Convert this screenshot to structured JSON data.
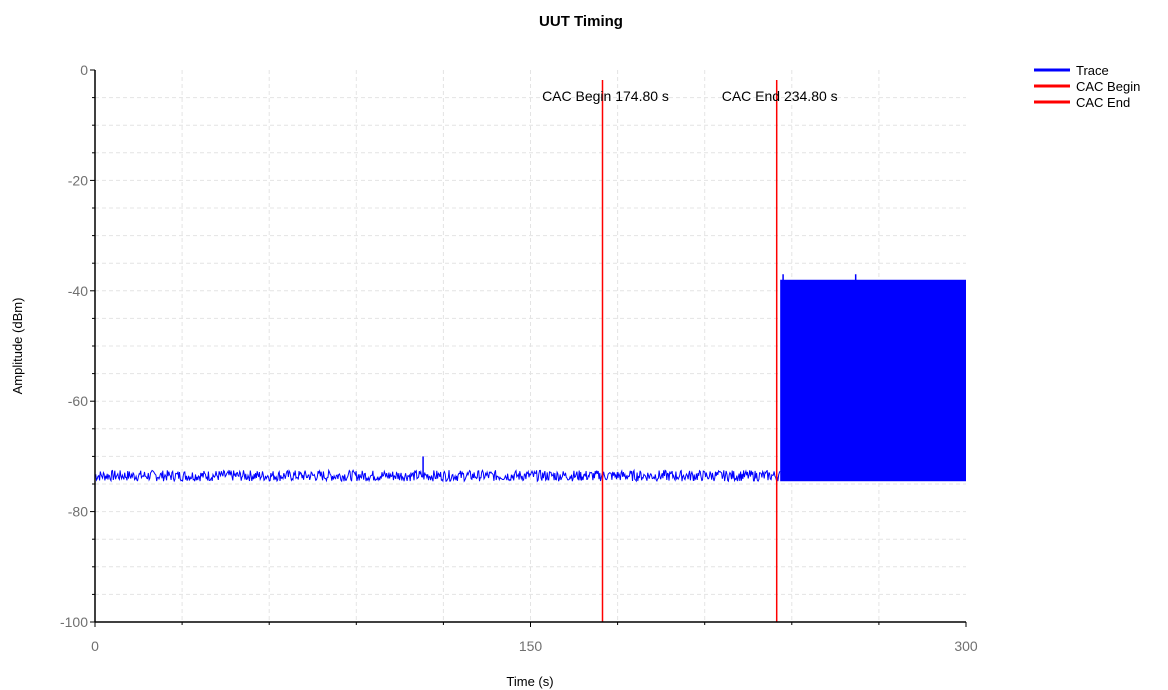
{
  "chart_data": {
    "type": "line",
    "title": "UUT Timing",
    "xlabel": "Time (s)",
    "ylabel": "Amplitude (dBm)",
    "xlim": [
      0,
      300
    ],
    "ylim": [
      -100,
      0
    ],
    "x_ticks": [
      0,
      150,
      300
    ],
    "y_ticks": [
      0,
      -20,
      -40,
      -60,
      -80,
      -100
    ],
    "grid": true,
    "legend_position": "top-right",
    "series": [
      {
        "name": "Trace",
        "color": "#0000ff",
        "segments": [
          {
            "x_start": 0,
            "x_end": 236,
            "level_min": -74.5,
            "level_max": -72.5,
            "description_value": -73.5
          },
          {
            "x_start": 236,
            "x_end": 300,
            "level_min": -74.5,
            "level_max": -38
          }
        ],
        "spikes": [
          {
            "x": 113,
            "y": -70
          },
          {
            "x": 237,
            "y": -37
          },
          {
            "x": 262,
            "y": -37
          }
        ]
      },
      {
        "name": "CAC Begin",
        "color": "#ff0000",
        "x": 174.8
      },
      {
        "name": "CAC End",
        "color": "#ff0000",
        "x": 234.8
      }
    ],
    "annotations": [
      {
        "text": "CAC Begin 174.80 s",
        "x": 174.8
      },
      {
        "text": "CAC End 234.80 s",
        "x": 234.8
      }
    ]
  }
}
